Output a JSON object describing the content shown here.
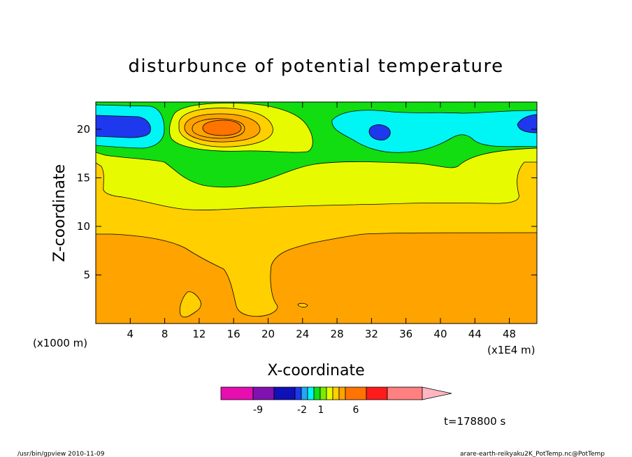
{
  "chart_data": {
    "type": "heatmap",
    "title": "disturbunce of potential temperature",
    "xlabel": "X-coordinate",
    "ylabel": "Z-coordinate",
    "x_unit_left": "(x1000 m)",
    "x_unit_right": "(x1E4 m)",
    "time_label": "t=178800 s",
    "xlim": [
      0,
      51.2
    ],
    "ylim": [
      0,
      22.8
    ],
    "x_ticks": [
      4,
      8,
      12,
      16,
      20,
      24,
      28,
      32,
      36,
      40,
      44,
      48
    ],
    "y_ticks": [
      5,
      10,
      15,
      20
    ],
    "colorbar": {
      "colors": [
        "#e70eb0",
        "#8111b1",
        "#1010b7",
        "#1e38ee",
        "#22a9f1",
        "#00f5f5",
        "#11dd10",
        "#77ed00",
        "#e8fa00",
        "#ffcf00",
        "#ffa300",
        "#ff7300",
        "#ff1b1b",
        "#ff8080",
        "#ffb6c1"
      ],
      "tick_labels": [
        "-9",
        "-2",
        "1",
        "6"
      ]
    },
    "regions": [
      {
        "level": "band_5_10",
        "color": "#ffcf00"
      },
      {
        "level": "band_1_5",
        "color": "#ffa300"
      },
      {
        "level": "band_10_15",
        "color": "#e8fa00"
      },
      {
        "level": "band_15_18",
        "color": "#11dd10"
      },
      {
        "level": "negative_upper",
        "color": "#00f5f5"
      },
      {
        "level": "strong_negative",
        "color": "#1e38ee"
      },
      {
        "level": "positive_max",
        "color": "#ff7300"
      }
    ]
  },
  "footer": {
    "left": "/usr/bin/gpview   2010-11-09",
    "right": "arare-earth-reikyaku2K_PotTemp.nc@PotTemp"
  }
}
